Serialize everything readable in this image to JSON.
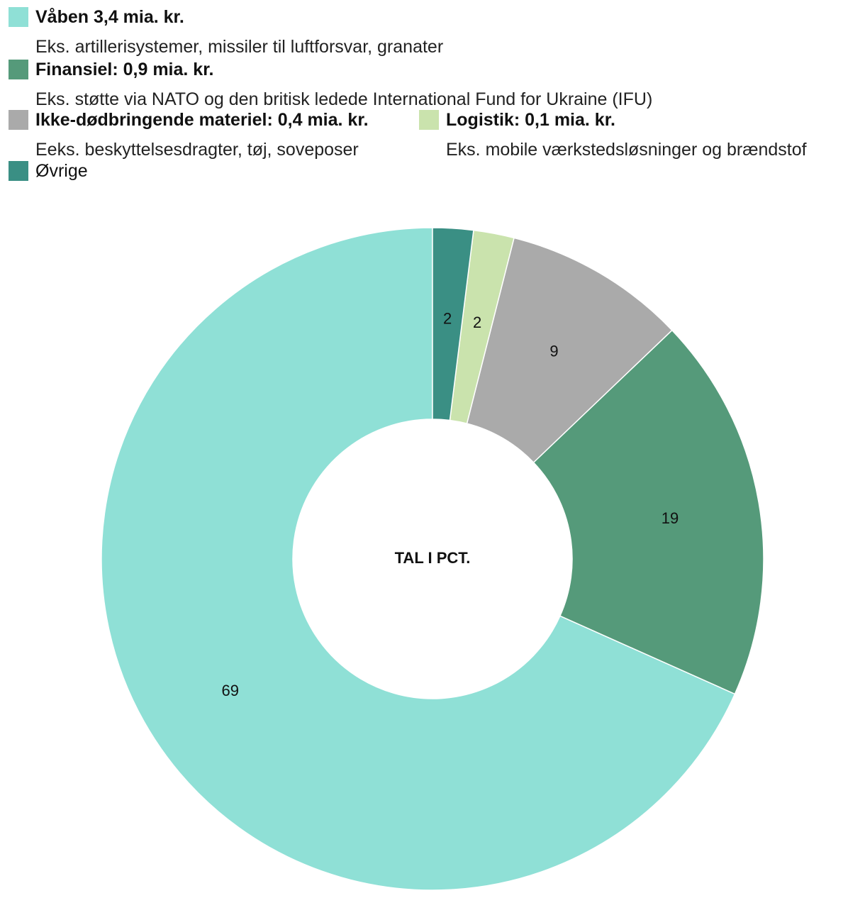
{
  "legend": [
    {
      "name": "Våben",
      "amount": " 3,4 mia. kr.",
      "desc": "Eks. artillerisystemer, missiler til luftforsvar, granater",
      "color": "#8fe0d6"
    },
    {
      "name": "Finansiel:",
      "amount": " 0,9 mia. kr.",
      "desc": "Eks. støtte via NATO og den britisk ledede International Fund for Ukraine (IFU)",
      "color": "#559a7a"
    },
    {
      "name": "Ikke-dødbringende materiel:",
      "amount": " 0,4 mia. kr.",
      "desc": "Eeks. beskyttelsesdragter, tøj, soveposer",
      "color": "#aaaaaa"
    },
    {
      "name": "Logistik:",
      "amount": " 0,1 mia. kr.",
      "desc": "Eks. mobile værkstedsløsninger og brændstof",
      "color": "#cae3ad"
    },
    {
      "name": "Øvrige",
      "amount": "",
      "desc": "",
      "color": "#3a8f84"
    }
  ],
  "chart_data": {
    "type": "pie",
    "variant": "donut",
    "center_label": "TAL I PCT.",
    "slices": [
      {
        "label": "Våben",
        "value": 69,
        "color": "#8fe0d6"
      },
      {
        "label": "Finansiel",
        "value": 19,
        "color": "#559a7a"
      },
      {
        "label": "Ikke-dødbringende materiel",
        "value": 9,
        "color": "#aaaaaa"
      },
      {
        "label": "Logistik",
        "value": 2,
        "color": "#cae3ad"
      },
      {
        "label": "Øvrige",
        "value": 2,
        "color": "#3a8f84"
      }
    ]
  }
}
